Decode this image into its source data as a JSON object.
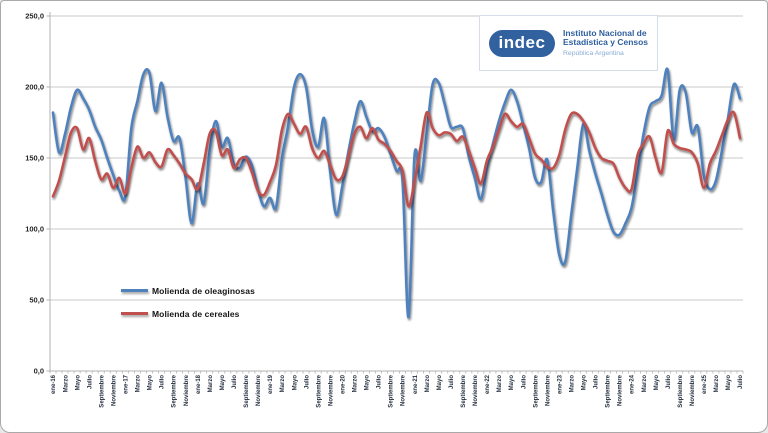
{
  "page": {
    "background": "#ffffff",
    "border_color": "#a9a9a9"
  },
  "logo": {
    "wordmark": "indec",
    "org_line1": "Instituto Nacional de",
    "org_line2": "Estadística y Censos",
    "country": "República Argentina",
    "pill_color": "#31619f",
    "org_text_color": "#2e5f9d",
    "country_text_color": "#8aabd4"
  },
  "chart_data": {
    "type": "line",
    "title": "",
    "xlabel": "",
    "ylabel": "",
    "ylim": [
      0,
      250
    ],
    "y_tick_interval": 50,
    "y_tick_labels": [
      "0,0",
      "50,0",
      "100,0",
      "150,0",
      "200,0",
      "250,0"
    ],
    "grid": "horizontal",
    "line_style": "smooth",
    "legend_position": "inside-left-middle",
    "x_unit": "month",
    "x_range": "enero 2016 - julio 2025",
    "x_months_total": 115,
    "x_tick_labels": [
      "ene-16",
      "Marzo",
      "Mayo",
      "Julio",
      "Septiembre",
      "Noviembre",
      "ene-17",
      "Marzo",
      "Mayo",
      "Julio",
      "Septiembre",
      "Noviembre",
      "ene-18",
      "Marzo",
      "Mayo",
      "Julio",
      "Septiembre",
      "Noviembre",
      "ene-19",
      "Marzo",
      "Mayo",
      "Julio",
      "Septiembre",
      "Noviembre",
      "ene-20",
      "Marzo",
      "Mayo",
      "Julio",
      "Septiembre",
      "Noviembre",
      "ene-21",
      "Marzo",
      "Mayo",
      "Julio",
      "Septiembre",
      "Noviembre",
      "ene-22",
      "Marzo",
      "Mayo",
      "Julio",
      "Septiembre",
      "Noviembre",
      "ene-23",
      "Marzo",
      "Mayo",
      "Julio",
      "Septiembre",
      "Noviembre",
      "ene-24",
      "Marzo",
      "Mayo",
      "Julio",
      "Septiembre",
      "Noviembre",
      "ene-25",
      "Marzo",
      "Mayo",
      "Julio"
    ],
    "series": [
      {
        "name": "Molienda de oleaginosas",
        "color": "#4f81bd",
        "values": [
          182,
          154,
          167,
          186,
          198,
          192,
          184,
          172,
          163,
          150,
          138,
          127,
          123,
          171,
          190,
          209,
          210,
          183,
          203,
          179,
          162,
          164,
          136,
          104,
          132,
          118,
          155,
          176,
          158,
          164,
          146,
          143,
          151,
          145,
          128,
          116,
          122,
          115,
          150,
          172,
          200,
          209,
          200,
          170,
          158,
          178,
          140,
          110,
          130,
          154,
          175,
          190,
          179,
          169,
          171,
          165,
          153,
          141,
          134,
          38,
          152,
          134,
          167,
          202,
          203,
          188,
          172,
          172,
          171,
          151,
          136,
          121,
          143,
          160,
          176,
          189,
          198,
          190,
          174,
          157,
          136,
          133,
          149,
          113,
          82,
          77,
          110,
          143,
          174,
          155,
          139,
          125,
          110,
          98,
          96,
          104,
          115,
          140,
          167,
          186,
          190,
          194,
          212,
          163,
          198,
          196,
          168,
          172,
          138,
          128,
          134,
          155,
          178,
          202,
          192
        ]
      },
      {
        "name": "Molienda de cereales",
        "color": "#c0504d",
        "values": [
          123,
          134,
          151,
          168,
          171,
          156,
          164,
          148,
          135,
          139,
          129,
          136,
          125,
          143,
          158,
          150,
          154,
          147,
          144,
          156,
          152,
          146,
          139,
          135,
          128,
          146,
          167,
          169,
          152,
          156,
          143,
          149,
          150,
          140,
          127,
          124,
          133,
          145,
          170,
          181,
          174,
          167,
          172,
          157,
          150,
          155,
          145,
          135,
          137,
          151,
          167,
          172,
          164,
          171,
          163,
          160,
          155,
          148,
          141,
          116,
          134,
          158,
          182,
          171,
          166,
          168,
          167,
          162,
          165,
          155,
          143,
          132,
          148,
          158,
          170,
          181,
          176,
          172,
          174,
          164,
          153,
          149,
          144,
          143,
          152,
          170,
          181,
          181,
          176,
          168,
          157,
          150,
          148,
          146,
          136,
          129,
          128,
          152,
          160,
          165,
          150,
          140,
          169,
          160,
          157,
          156,
          154,
          146,
          129,
          146,
          155,
          166,
          177,
          182,
          164
        ]
      }
    ]
  }
}
